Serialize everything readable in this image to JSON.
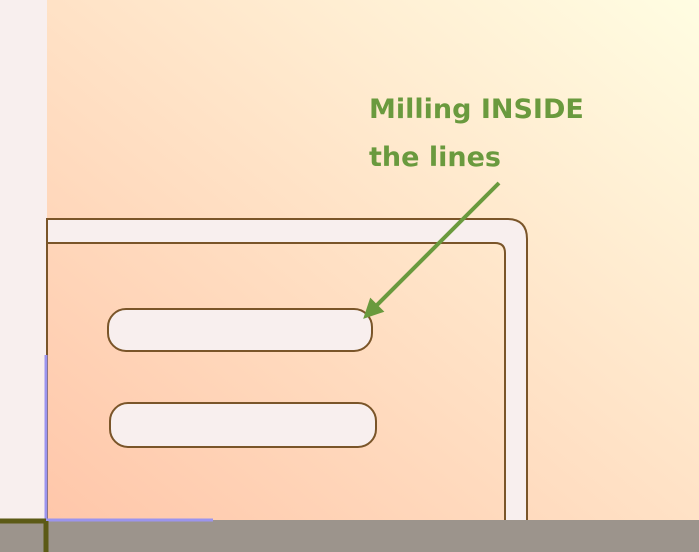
{
  "annotation": {
    "text": "Milling INSIDE\nthe lines"
  },
  "colors": {
    "stock_gradient_start": "#ffc3a6",
    "stock_gradient_end": "#fffde2",
    "cut_fill": "#f8efee",
    "toolpath_line": "#7a5529",
    "annotation_green": "#6a9a3e",
    "floor_gray": "#9c948c",
    "axis_olive": "#5c5a16",
    "axis_blue": "#9b94ee"
  }
}
